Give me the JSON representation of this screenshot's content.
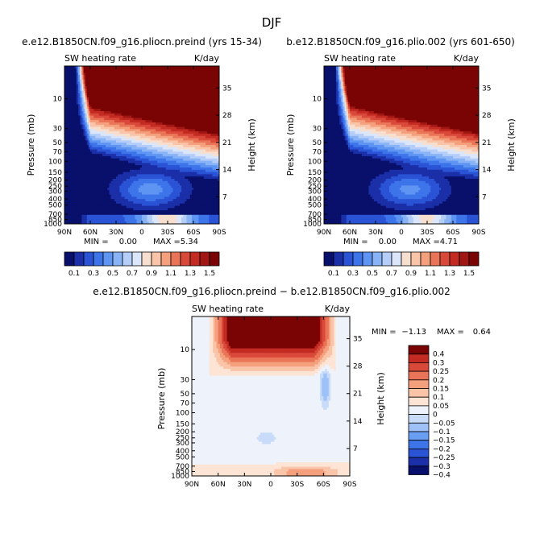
{
  "figure": {
    "title": "DJF"
  },
  "panels": [
    {
      "title": "e.e12.B1850CN.f09_g16.pliocn.preind (yrs 15-34)",
      "left_label": "SW heating rate",
      "right_label": "K/day",
      "min_label": "MIN =",
      "min_value": "0.00",
      "max_label": "MAX =",
      "max_value": "5.34"
    },
    {
      "title": "b.e12.B1850CN.f09_g16.plio.002 (yrs 601-650)",
      "left_label": "SW heating rate",
      "right_label": "K/day",
      "min_label": "MIN =",
      "min_value": "0.00",
      "max_label": "MAX =",
      "max_value": "4.71"
    },
    {
      "title": "e.e12.B1850CN.f09_g16.pliocn.preind − b.e12.B1850CN.f09_g16.plio.002",
      "left_label": "SW heating rate",
      "right_label": "K/day",
      "min_label": "MIN =",
      "min_value": "−1.13",
      "max_label": "MAX =",
      "max_value": "0.64"
    }
  ],
  "colors": {
    "abs_scale": [
      "#08106b",
      "#1b2fa8",
      "#2a53d5",
      "#3d74ea",
      "#5f95f2",
      "#88b3f7",
      "#b4cdf9",
      "#dbe6fb",
      "#f7dfcf",
      "#f9c4a8",
      "#f4a07d",
      "#ea7457",
      "#d9493a",
      "#c22a22",
      "#a11714",
      "#7a0404"
    ],
    "diff_scale": [
      "#08106b",
      "#1b2fa8",
      "#2a53d5",
      "#3d74ea",
      "#6a9ef3",
      "#9ec2f8",
      "#c8dcfa",
      "#eef2fa",
      "#fde4d4",
      "#f9c4a8",
      "#f4a07d",
      "#ea7457",
      "#d9493a",
      "#c22a22",
      "#7a0404"
    ]
  },
  "chart_data": [
    {
      "type": "heatmap",
      "title": "e.e12.B1850CN.f09_g16.pliocn.preind (yrs 15-34)",
      "xlabel": "",
      "ylabel": "Pressure (mb)",
      "y2label": "Height (km)",
      "x_ticks": [
        "90N",
        "60N",
        "30N",
        "0",
        "30S",
        "60S",
        "90S"
      ],
      "x_lim": [
        90,
        -90
      ],
      "y_scale": "log",
      "y_lim": [
        1000,
        3
      ],
      "y_ticks": [
        10,
        30,
        50,
        70,
        100,
        150,
        200,
        250,
        300,
        400,
        500,
        700,
        850,
        1000
      ],
      "y2_ticks": [
        7,
        14,
        21,
        28,
        35
      ],
      "colorbar_levels": [
        "0.1",
        "0.3",
        "0.5",
        "0.7",
        "0.9",
        "1.1",
        "1.3",
        "1.5"
      ],
      "field_min": 0.0,
      "field_max": 5.34
    },
    {
      "type": "heatmap",
      "title": "b.e12.B1850CN.f09_g16.plio.002 (yrs 601-650)",
      "xlabel": "",
      "ylabel": "Pressure (mb)",
      "y2label": "Height (km)",
      "x_ticks": [
        "90N",
        "60N",
        "30N",
        "0",
        "30S",
        "60S",
        "90S"
      ],
      "x_lim": [
        90,
        -90
      ],
      "y_scale": "log",
      "y_lim": [
        1000,
        3
      ],
      "y_ticks": [
        10,
        30,
        50,
        70,
        100,
        150,
        200,
        250,
        300,
        400,
        500,
        700,
        850,
        1000
      ],
      "y2_ticks": [
        7,
        14,
        21,
        28,
        35
      ],
      "colorbar_levels": [
        "0.1",
        "0.3",
        "0.5",
        "0.7",
        "0.9",
        "1.1",
        "1.3",
        "1.5"
      ],
      "field_min": 0.0,
      "field_max": 4.71
    },
    {
      "type": "heatmap",
      "title": "e.e12.B1850CN.f09_g16.pliocn.preind − b.e12.B1850CN.f09_g16.plio.002",
      "xlabel": "",
      "ylabel": "Pressure (mb)",
      "y2label": "Height (km)",
      "x_ticks": [
        "90N",
        "60N",
        "30N",
        "0",
        "30S",
        "60S",
        "90S"
      ],
      "x_lim": [
        90,
        -90
      ],
      "y_scale": "log",
      "y_lim": [
        1000,
        3
      ],
      "y_ticks": [
        10,
        30,
        50,
        70,
        100,
        150,
        200,
        250,
        300,
        400,
        500,
        700,
        850,
        1000
      ],
      "y2_ticks": [
        7,
        14,
        21,
        28,
        35
      ],
      "colorbar_levels": [
        "0.4",
        "0.3",
        "0.25",
        "0.2",
        "0.15",
        "0.1",
        "0.05",
        "0",
        "−0.05",
        "−0.1",
        "−0.15",
        "−0.2",
        "−0.25",
        "−0.3",
        "−0.4"
      ],
      "field_min": -1.13,
      "field_max": 0.64
    }
  ]
}
